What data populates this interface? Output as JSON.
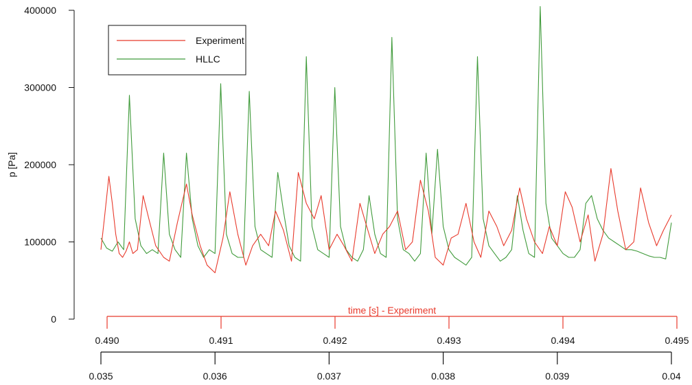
{
  "chart_data": {
    "type": "line",
    "title": "",
    "ylabel": "p [Pa]",
    "ylim": [
      0,
      410000
    ],
    "yticks": [
      "0",
      "100000",
      "200000",
      "300000",
      "400000"
    ],
    "x_axis_top": {
      "label": "time [s] - Experiment",
      "range": [
        0.49,
        0.495
      ],
      "ticks": [
        "0.490",
        "0.491",
        "0.492",
        "0.493",
        "0.494",
        "0.495"
      ],
      "color": "#e8392b"
    },
    "x_axis_bottom": {
      "label": "",
      "range": [
        0.035,
        0.04
      ],
      "ticks": [
        "0.035",
        "0.036",
        "0.037",
        "0.038",
        "0.039",
        "0.04"
      ],
      "color": "#111111"
    },
    "legend": {
      "position": "top-left",
      "entries": [
        "Experiment",
        "HLLC"
      ]
    },
    "grid": false,
    "series": [
      {
        "name": "Experiment",
        "color": "#e8392b",
        "x": [
          0.035,
          0.03503,
          0.03507,
          0.0351,
          0.03513,
          0.03516,
          0.03519,
          0.03522,
          0.03525,
          0.03528,
          0.03532,
          0.03537,
          0.03542,
          0.03548,
          0.03555,
          0.0356,
          0.03567,
          0.03575,
          0.0358,
          0.03587,
          0.03593,
          0.036,
          0.03607,
          0.03613,
          0.0362,
          0.03627,
          0.03633,
          0.0364,
          0.03647,
          0.03653,
          0.0366,
          0.03667,
          0.03673,
          0.0368,
          0.03687,
          0.03693,
          0.037,
          0.03707,
          0.03713,
          0.0372,
          0.03727,
          0.03733,
          0.0374,
          0.03747,
          0.03753,
          0.0376,
          0.03767,
          0.03773,
          0.0378,
          0.03787,
          0.03793,
          0.038,
          0.03807,
          0.03813,
          0.0382,
          0.03827,
          0.03833,
          0.0384,
          0.03847,
          0.03853,
          0.0386,
          0.03867,
          0.03873,
          0.0388,
          0.03887,
          0.03893,
          0.039,
          0.03907,
          0.03913,
          0.0392,
          0.03927,
          0.03933,
          0.0394,
          0.03947,
          0.03953,
          0.0396,
          0.03967,
          0.03973,
          0.0398,
          0.03987,
          0.03993,
          0.04
        ],
        "y": [
          90000,
          130000,
          185000,
          150000,
          110000,
          85000,
          80000,
          88000,
          100000,
          85000,
          90000,
          160000,
          130000,
          95000,
          80000,
          75000,
          125000,
          175000,
          135000,
          95000,
          70000,
          60000,
          105000,
          165000,
          110000,
          70000,
          95000,
          110000,
          95000,
          140000,
          115000,
          75000,
          190000,
          150000,
          130000,
          160000,
          90000,
          110000,
          95000,
          75000,
          150000,
          120000,
          85000,
          110000,
          120000,
          140000,
          90000,
          100000,
          180000,
          140000,
          80000,
          70000,
          105000,
          110000,
          150000,
          100000,
          80000,
          140000,
          120000,
          95000,
          115000,
          170000,
          130000,
          100000,
          85000,
          120000,
          95000,
          165000,
          145000,
          100000,
          135000,
          75000,
          110000,
          195000,
          140000,
          90000,
          100000,
          170000,
          125000,
          95000,
          115000,
          135000
        ]
      },
      {
        "name": "HLLC",
        "color": "#3f9a3a",
        "x": [
          0.035,
          0.03505,
          0.0351,
          0.03515,
          0.0352,
          0.03525,
          0.0353,
          0.03535,
          0.0354,
          0.03545,
          0.0355,
          0.03555,
          0.0356,
          0.03565,
          0.0357,
          0.03575,
          0.0358,
          0.03585,
          0.0359,
          0.03595,
          0.036,
          0.03605,
          0.0361,
          0.03615,
          0.0362,
          0.03625,
          0.0363,
          0.03635,
          0.0364,
          0.03645,
          0.0365,
          0.03655,
          0.0366,
          0.03665,
          0.0367,
          0.03675,
          0.0368,
          0.03685,
          0.0369,
          0.03695,
          0.037,
          0.03705,
          0.0371,
          0.03715,
          0.0372,
          0.03725,
          0.0373,
          0.03735,
          0.0374,
          0.03745,
          0.0375,
          0.03755,
          0.0376,
          0.03765,
          0.0377,
          0.03775,
          0.0378,
          0.03785,
          0.0379,
          0.03795,
          0.038,
          0.03805,
          0.0381,
          0.03815,
          0.0382,
          0.03825,
          0.0383,
          0.03835,
          0.0384,
          0.03845,
          0.0385,
          0.03855,
          0.0386,
          0.03865,
          0.0387,
          0.03875,
          0.0388,
          0.03885,
          0.0389,
          0.03895,
          0.039,
          0.03905,
          0.0391,
          0.03915,
          0.0392,
          0.03925,
          0.0393,
          0.03935,
          0.0394,
          0.03945,
          0.0395,
          0.03955,
          0.0396,
          0.03965,
          0.0397,
          0.03975,
          0.0398,
          0.03985,
          0.0399,
          0.03995,
          0.04
        ],
        "y": [
          105000,
          92000,
          88000,
          100000,
          90000,
          290000,
          130000,
          95000,
          85000,
          90000,
          85000,
          215000,
          110000,
          90000,
          80000,
          215000,
          130000,
          95000,
          80000,
          90000,
          85000,
          305000,
          110000,
          85000,
          80000,
          80000,
          295000,
          120000,
          90000,
          85000,
          80000,
          190000,
          140000,
          95000,
          80000,
          75000,
          340000,
          120000,
          90000,
          85000,
          80000,
          300000,
          120000,
          90000,
          80000,
          75000,
          90000,
          160000,
          110000,
          85000,
          80000,
          365000,
          130000,
          90000,
          85000,
          75000,
          85000,
          215000,
          110000,
          220000,
          120000,
          90000,
          80000,
          75000,
          70000,
          80000,
          340000,
          130000,
          95000,
          85000,
          75000,
          80000,
          90000,
          160000,
          115000,
          85000,
          80000,
          405000,
          150000,
          105000,
          95000,
          85000,
          80000,
          80000,
          90000,
          150000,
          160000,
          130000,
          115000,
          105000,
          100000,
          95000,
          90000,
          90000,
          88000,
          85000,
          82000,
          80000,
          80000,
          78000,
          125000
        ]
      }
    ]
  }
}
